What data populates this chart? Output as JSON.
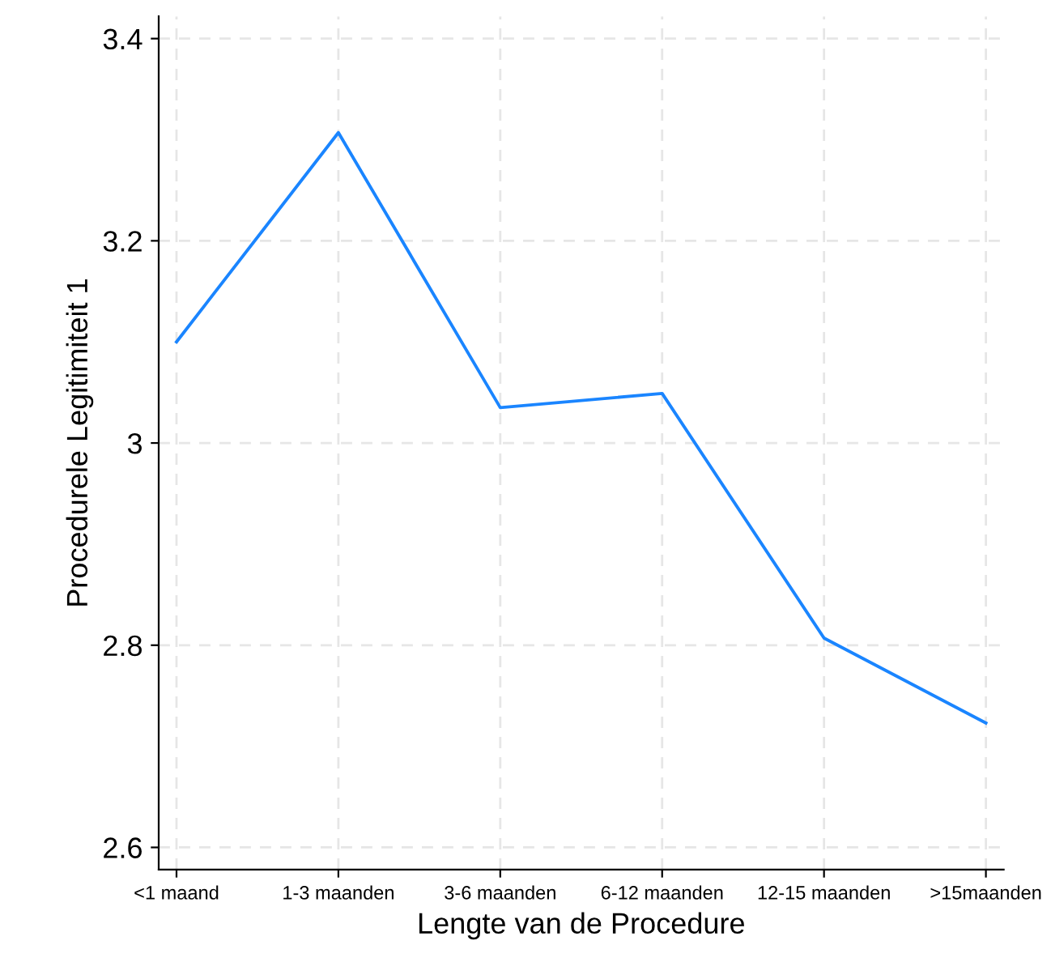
{
  "chart_data": {
    "type": "line",
    "xlabel": "Lengte van de Procedure",
    "ylabel": "Procedurele Legitimiteit 1",
    "categories": [
      "<1 maand",
      "1-3 maanden",
      "3-6 maanden",
      "6-12 maanden",
      "12-15 maanden",
      ">15maanden"
    ],
    "series": [
      {
        "color": "#1a85ff",
        "values": [
          3.1,
          3.307,
          3.035,
          3.049,
          2.807,
          2.723
        ]
      }
    ],
    "ylim": [
      2.578,
      3.422
    ],
    "yticks": [
      2.6,
      2.8,
      {
        "value": 3,
        "label": "3"
      },
      3.2,
      3.4
    ],
    "grid": true,
    "marker": "none",
    "line_style": "solid"
  }
}
